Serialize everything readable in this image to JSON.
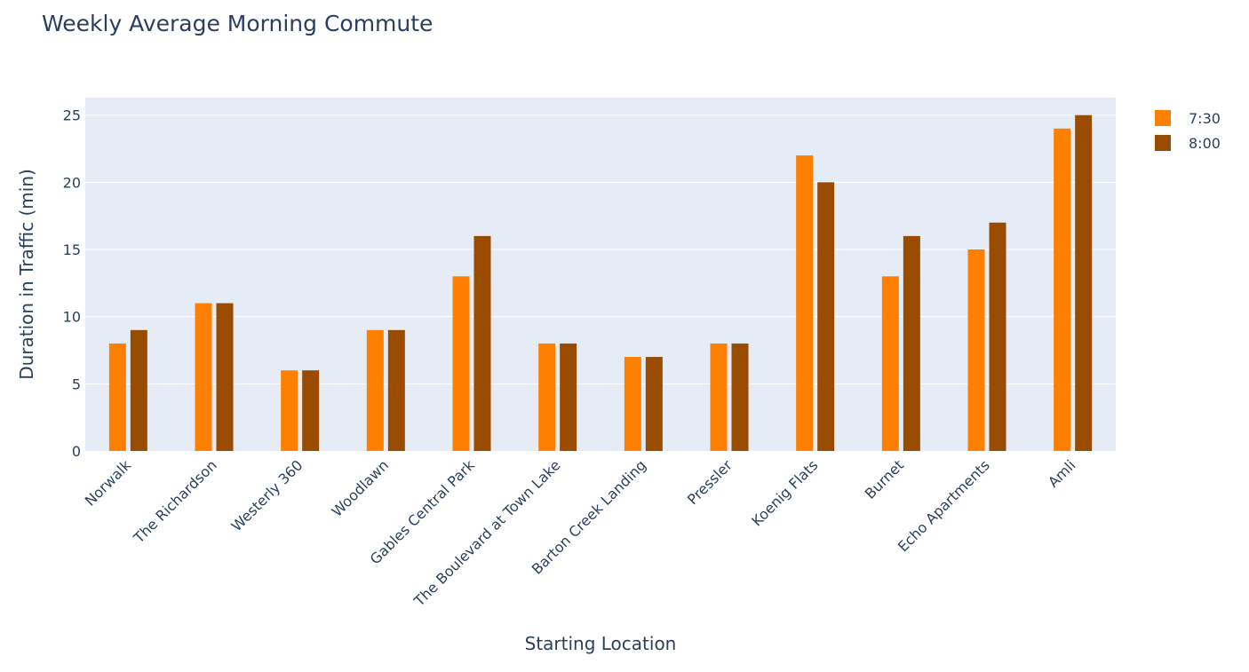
{
  "chart_data": {
    "type": "bar",
    "title": "Weekly Average Morning Commute",
    "xlabel": "Starting Location",
    "ylabel": "Duration in Traffic (min)",
    "ylim": [
      0,
      26.3
    ],
    "yticks": [
      0,
      5,
      10,
      15,
      20,
      25
    ],
    "grid": true,
    "legend_position": "top-right",
    "categories": [
      "Norwalk",
      "The Richardson",
      "Westerly 360",
      "Woodlawn",
      "Gables Central Park",
      "The Boulevard at Town Lake",
      "Barton Creek Landing",
      "Pressler",
      "Koenig Flats",
      "Burnet",
      "Echo Apartments",
      "Amli"
    ],
    "series": [
      {
        "name": "7:30",
        "color": "#ff8000",
        "values": [
          8,
          11,
          6,
          9,
          13,
          8,
          7,
          8,
          22,
          13,
          15,
          24
        ]
      },
      {
        "name": "8:00",
        "color": "#994c00",
        "values": [
          9,
          11,
          6,
          9,
          16,
          8,
          7,
          8,
          20,
          16,
          17,
          25
        ]
      }
    ]
  },
  "colors": {
    "plot_background": "#e5ecf6",
    "gridline": "#ffffff",
    "text": "#2a3f5f"
  }
}
